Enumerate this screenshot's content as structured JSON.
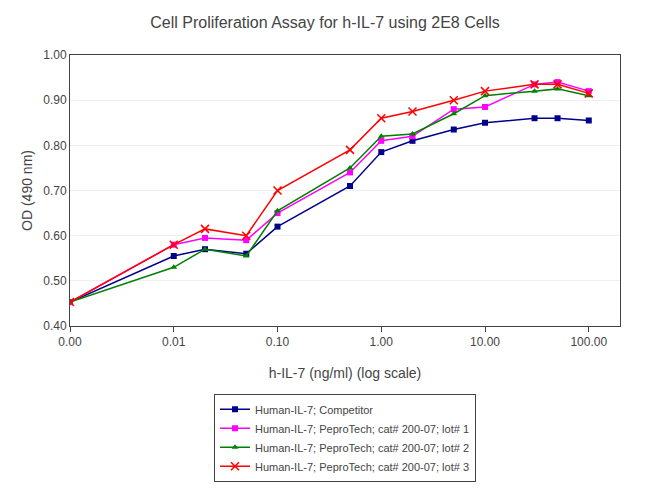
{
  "chart_data": {
    "type": "line",
    "title": "Cell Proliferation Assay for h-IL-7 using 2E8 Cells",
    "xlabel": "h-IL-7 (ng/ml) (log scale)",
    "ylabel": "OD (490 nm)",
    "log": "x",
    "xlim": [
      0.001,
      200.0
    ],
    "xticks": [
      {
        "value": 0.001,
        "label": "0.00"
      },
      0.01,
      {
        "value": 0.1,
        "label": "0.10"
      },
      {
        "value": 1.0,
        "label": "1.00"
      },
      {
        "value": 10.0,
        "label": "10.00"
      },
      {
        "value": 100.0,
        "label": "100.00"
      }
    ],
    "ylim": [
      0.4,
      1.0
    ],
    "yticks": [
      {
        "value": 0.4,
        "label": "0.40"
      },
      {
        "value": 0.5,
        "label": "0.50"
      },
      {
        "value": 0.6,
        "label": "0.60"
      },
      {
        "value": 0.7,
        "label": "0.70"
      },
      {
        "value": 0.8,
        "label": "0.80"
      },
      {
        "value": 0.9,
        "label": "0.90"
      },
      {
        "value": 1.0,
        "label": "1.00"
      }
    ],
    "grid": "y",
    "legend": "bottom",
    "x": [
      0.001,
      0.01,
      0.02,
      0.05,
      0.1,
      0.5,
      1.0,
      2.0,
      5.0,
      10.0,
      30.0,
      50.0,
      100.0
    ],
    "series": [
      {
        "name": "Human-IL-7; Competitor",
        "color": "#00008B",
        "marker": "square",
        "values": [
          0.453,
          0.555,
          0.57,
          0.56,
          0.62,
          0.71,
          0.785,
          0.81,
          0.835,
          0.85,
          0.86,
          0.86,
          0.855
        ]
      },
      {
        "name": "Human-IL-7; PeproTech; cat# 200-07; lot# 1",
        "color": "#FF00FF",
        "marker": "square",
        "values": [
          0.453,
          0.58,
          0.595,
          0.59,
          0.65,
          0.74,
          0.81,
          0.82,
          0.88,
          0.885,
          0.935,
          0.94,
          0.92
        ]
      },
      {
        "name": "Human-IL-7; PeproTech; cat# 200-07; lot# 2",
        "color": "#008000",
        "marker": "triangle",
        "values": [
          0.453,
          0.53,
          0.57,
          0.555,
          0.655,
          0.75,
          0.82,
          0.825,
          0.87,
          0.91,
          0.92,
          0.925,
          0.91
        ]
      },
      {
        "name": "Human-IL-7; PeproTech; cat# 200-07; lot# 3",
        "color": "#FF0000",
        "marker": "x",
        "values": [
          0.453,
          0.58,
          0.615,
          0.6,
          0.7,
          0.79,
          0.86,
          0.875,
          0.9,
          0.92,
          0.935,
          0.935,
          0.915
        ]
      }
    ]
  }
}
